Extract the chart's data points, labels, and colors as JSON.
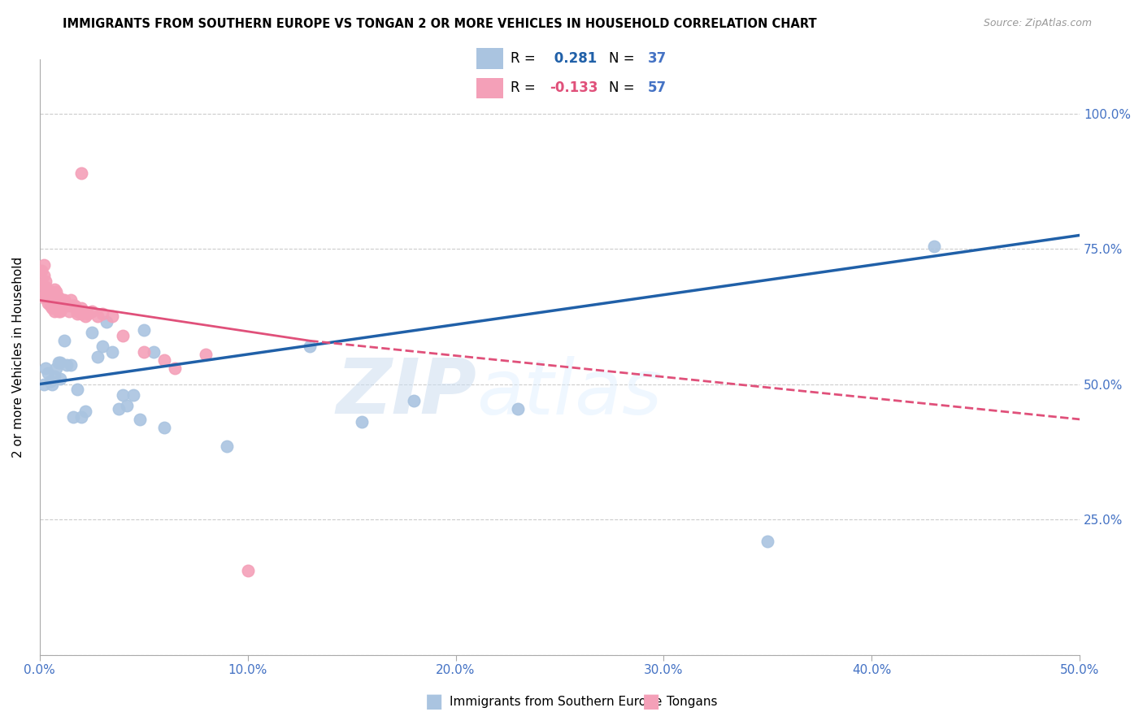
{
  "title": "IMMIGRANTS FROM SOUTHERN EUROPE VS TONGAN 2 OR MORE VEHICLES IN HOUSEHOLD CORRELATION CHART",
  "source": "Source: ZipAtlas.com",
  "ylabel": "2 or more Vehicles in Household",
  "xlim": [
    0,
    0.5
  ],
  "ylim": [
    0,
    1.1
  ],
  "yticks": [
    0.0,
    0.25,
    0.5,
    0.75,
    1.0
  ],
  "ytick_labels": [
    "",
    "25.0%",
    "50.0%",
    "75.0%",
    "100.0%"
  ],
  "xticks": [
    0.0,
    0.1,
    0.2,
    0.3,
    0.4,
    0.5
  ],
  "xtick_labels": [
    "0.0%",
    "10.0%",
    "20.0%",
    "30.0%",
    "40.0%",
    "50.0%"
  ],
  "blue_R": 0.281,
  "blue_N": 37,
  "pink_R": -0.133,
  "pink_N": 57,
  "blue_color": "#aac4e0",
  "pink_color": "#f4a0b8",
  "blue_line_color": "#2060a8",
  "pink_line_color": "#e0507a",
  "axis_color": "#4472c4",
  "watermark_color": "#ccddf0",
  "blue_line_x0": 0.0,
  "blue_line_y0": 0.5,
  "blue_line_x1": 0.5,
  "blue_line_y1": 0.775,
  "pink_line_solid_x0": 0.0,
  "pink_line_solid_y0": 0.655,
  "pink_line_solid_x1": 0.13,
  "pink_line_solid_y1": 0.58,
  "pink_line_dash_x0": 0.13,
  "pink_line_dash_y0": 0.58,
  "pink_line_dash_x1": 0.5,
  "pink_line_dash_y1": 0.435,
  "blue_scatter_x": [
    0.002,
    0.003,
    0.004,
    0.005,
    0.006,
    0.007,
    0.008,
    0.009,
    0.01,
    0.01,
    0.012,
    0.013,
    0.015,
    0.016,
    0.018,
    0.02,
    0.022,
    0.025,
    0.028,
    0.03,
    0.032,
    0.035,
    0.038,
    0.04,
    0.042,
    0.045,
    0.048,
    0.05,
    0.055,
    0.06,
    0.09,
    0.13,
    0.155,
    0.18,
    0.23,
    0.35,
    0.43
  ],
  "blue_scatter_y": [
    0.5,
    0.53,
    0.52,
    0.505,
    0.5,
    0.515,
    0.53,
    0.54,
    0.54,
    0.51,
    0.58,
    0.535,
    0.535,
    0.44,
    0.49,
    0.44,
    0.45,
    0.595,
    0.55,
    0.57,
    0.615,
    0.56,
    0.455,
    0.48,
    0.46,
    0.48,
    0.435,
    0.6,
    0.56,
    0.42,
    0.385,
    0.57,
    0.43,
    0.47,
    0.455,
    0.21,
    0.755
  ],
  "pink_scatter_x": [
    0.001,
    0.001,
    0.002,
    0.002,
    0.002,
    0.003,
    0.003,
    0.003,
    0.004,
    0.004,
    0.004,
    0.005,
    0.005,
    0.005,
    0.005,
    0.006,
    0.006,
    0.006,
    0.006,
    0.007,
    0.007,
    0.007,
    0.008,
    0.008,
    0.008,
    0.009,
    0.009,
    0.01,
    0.01,
    0.01,
    0.011,
    0.011,
    0.012,
    0.012,
    0.013,
    0.014,
    0.015,
    0.015,
    0.016,
    0.017,
    0.018,
    0.018,
    0.02,
    0.02,
    0.022,
    0.023,
    0.025,
    0.028,
    0.03,
    0.035,
    0.04,
    0.05,
    0.06,
    0.065,
    0.08,
    0.1,
    0.02
  ],
  "pink_scatter_y": [
    0.68,
    0.71,
    0.66,
    0.7,
    0.72,
    0.665,
    0.68,
    0.69,
    0.65,
    0.66,
    0.67,
    0.655,
    0.66,
    0.67,
    0.645,
    0.64,
    0.655,
    0.67,
    0.645,
    0.635,
    0.655,
    0.675,
    0.645,
    0.655,
    0.67,
    0.635,
    0.66,
    0.635,
    0.645,
    0.655,
    0.645,
    0.655,
    0.645,
    0.655,
    0.645,
    0.635,
    0.645,
    0.655,
    0.645,
    0.645,
    0.635,
    0.63,
    0.64,
    0.63,
    0.625,
    0.63,
    0.635,
    0.625,
    0.63,
    0.625,
    0.59,
    0.56,
    0.545,
    0.53,
    0.555,
    0.155,
    0.89
  ]
}
